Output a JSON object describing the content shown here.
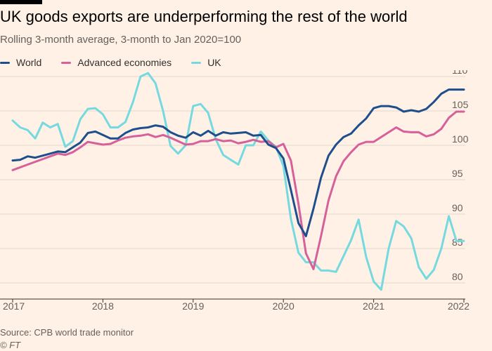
{
  "title": "UK goods exports are underperforming the rest of the world",
  "subtitle": "Rolling 3-month average, 3-month to Jan 2020=100",
  "source": "Source: CPB world trade monitor",
  "credit": "© FT",
  "colors": {
    "World": "#1D4F8C",
    "Advanced economies": "#D6609A",
    "UK": "#75D9E0",
    "grid": "#E3D9D0",
    "axis": "#33302E"
  },
  "chart_data": {
    "type": "line",
    "title": "UK goods exports are underperforming the rest of the world",
    "subtitle": "Rolling 3-month average, 3-month to Jan 2020=100",
    "xlabel": "",
    "ylabel": "",
    "xlim": [
      "2017-01",
      "2022-01"
    ],
    "ylim": [
      79,
      111
    ],
    "yticks": [
      80,
      85,
      90,
      95,
      100,
      105,
      110
    ],
    "xticks": [
      "2017",
      "2018",
      "2019",
      "2020",
      "2021",
      "2022"
    ],
    "y_axis_position": "right",
    "grid": true,
    "legend_position": "top-left",
    "x": [
      "2017-01",
      "2017-02",
      "2017-03",
      "2017-04",
      "2017-05",
      "2017-06",
      "2017-07",
      "2017-08",
      "2017-09",
      "2017-10",
      "2017-11",
      "2017-12",
      "2018-01",
      "2018-02",
      "2018-03",
      "2018-04",
      "2018-05",
      "2018-06",
      "2018-07",
      "2018-08",
      "2018-09",
      "2018-10",
      "2018-11",
      "2018-12",
      "2019-01",
      "2019-02",
      "2019-03",
      "2019-04",
      "2019-05",
      "2019-06",
      "2019-07",
      "2019-08",
      "2019-09",
      "2019-10",
      "2019-11",
      "2019-12",
      "2020-01",
      "2020-02",
      "2020-03",
      "2020-04",
      "2020-05",
      "2020-06",
      "2020-07",
      "2020-08",
      "2020-09",
      "2020-10",
      "2020-11",
      "2020-12",
      "2021-01",
      "2021-02",
      "2021-03",
      "2021-04",
      "2021-05",
      "2021-06",
      "2021-07",
      "2021-08",
      "2021-09",
      "2021-10",
      "2021-11",
      "2021-12",
      "2022-01"
    ],
    "series": [
      {
        "name": "World",
        "values": [
          97.8,
          97.9,
          98.4,
          98.2,
          98.5,
          98.8,
          99.1,
          99.0,
          99.7,
          100.4,
          101.8,
          102.0,
          101.5,
          101.0,
          101.0,
          101.8,
          102.3,
          102.5,
          102.6,
          102.9,
          102.7,
          101.9,
          101.4,
          101.1,
          101.9,
          101.4,
          102.1,
          101.4,
          101.9,
          101.7,
          101.8,
          101.9,
          101.4,
          101.5,
          100.1,
          99.6,
          98.1,
          93.5,
          88.7,
          86.8,
          90.8,
          95.3,
          98.5,
          100.1,
          101.2,
          101.7,
          102.9,
          103.9,
          105.4,
          105.7,
          105.7,
          105.5,
          104.9,
          105.1,
          104.9,
          105.3,
          106.3,
          107.5,
          108.1,
          108.1,
          108.1
        ]
      },
      {
        "name": "Advanced economies",
        "values": [
          96.4,
          96.8,
          97.2,
          97.6,
          98.0,
          98.4,
          98.8,
          98.6,
          99.0,
          99.7,
          100.5,
          100.3,
          100.1,
          100.2,
          100.7,
          101.1,
          101.3,
          101.4,
          101.6,
          101.2,
          101.5,
          101.1,
          100.6,
          100.1,
          100.2,
          100.6,
          100.6,
          100.9,
          100.6,
          100.7,
          100.3,
          100.5,
          100.8,
          100.5,
          100.6,
          99.7,
          100.2,
          97.8,
          91.5,
          84.3,
          82.0,
          86.8,
          92.0,
          95.5,
          97.7,
          99.0,
          100.1,
          100.5,
          100.5,
          101.2,
          101.9,
          102.6,
          102.0,
          101.9,
          101.9,
          101.3,
          101.6,
          102.4,
          104.0,
          104.9,
          104.9
        ]
      },
      {
        "name": "UK",
        "values": [
          103.6,
          102.6,
          102.2,
          101.0,
          103.3,
          102.6,
          103.1,
          99.8,
          100.6,
          103.8,
          105.3,
          105.4,
          104.5,
          102.6,
          102.6,
          103.4,
          106.3,
          110.0,
          110.5,
          109.0,
          105.0,
          99.9,
          98.8,
          100.0,
          105.7,
          106.0,
          104.7,
          100.9,
          98.6,
          97.9,
          97.2,
          100.0,
          100.0,
          102.0,
          100.7,
          99.8,
          97.0,
          89.3,
          84.4,
          83.0,
          83.0,
          81.8,
          81.8,
          81.6,
          83.9,
          86.2,
          89.2,
          83.8,
          80.2,
          79.0,
          85.0,
          89.0,
          88.2,
          86.5,
          82.3,
          80.6,
          81.9,
          85.0,
          89.7,
          86.1,
          86.1
        ]
      }
    ]
  }
}
